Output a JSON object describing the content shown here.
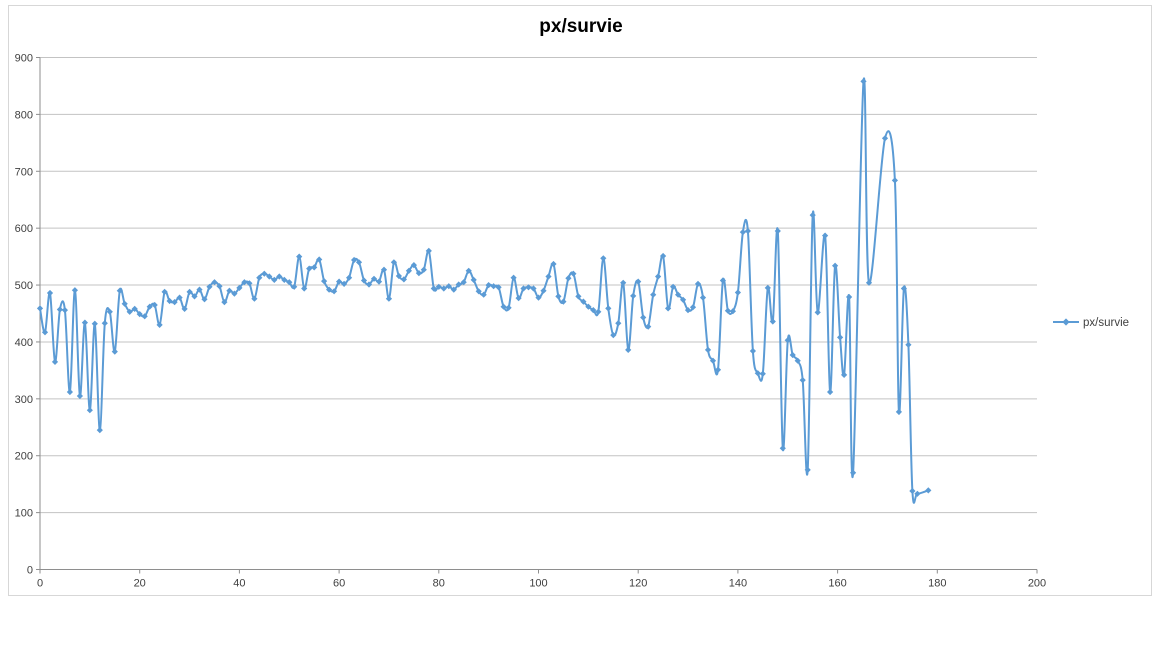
{
  "chart": {
    "title": "px/survie",
    "legend_label": "px/survie"
  },
  "style": {
    "series_color": "#5B9BD5",
    "gridline_color": "#C3C3C3",
    "axis_color": "#8E8E8E",
    "border_color": "#D7D7D7",
    "label_color": "#3F3F3F",
    "title_color": "#000000"
  },
  "chart_data": {
    "type": "line",
    "title": "px/survie",
    "legend": [
      "px/survie"
    ],
    "legend_position": "right",
    "xlabel": "",
    "ylabel": "",
    "xlim": [
      0,
      200
    ],
    "ylim": [
      0,
      900
    ],
    "x_ticks": [
      0,
      20,
      40,
      60,
      80,
      100,
      120,
      140,
      160,
      180,
      200
    ],
    "y_ticks": [
      0,
      100,
      200,
      300,
      400,
      500,
      600,
      700,
      800,
      900
    ],
    "grid": "horizontal",
    "smoothed_line": true,
    "marker": "diamond",
    "points": [
      [
        0,
        459
      ],
      [
        1,
        417
      ],
      [
        2,
        486
      ],
      [
        3,
        365
      ],
      [
        4,
        457
      ],
      [
        5,
        456
      ],
      [
        6,
        312
      ],
      [
        7,
        491
      ],
      [
        8,
        305
      ],
      [
        9,
        434
      ],
      [
        10,
        280
      ],
      [
        11,
        432
      ],
      [
        12,
        245
      ],
      [
        13,
        433
      ],
      [
        14,
        453
      ],
      [
        15,
        383
      ],
      [
        16,
        490
      ],
      [
        17,
        467
      ],
      [
        18,
        453
      ],
      [
        19,
        458
      ],
      [
        20,
        449
      ],
      [
        21,
        445
      ],
      [
        22,
        462
      ],
      [
        23,
        465
      ],
      [
        24,
        430
      ],
      [
        25,
        488
      ],
      [
        26,
        472
      ],
      [
        27,
        470
      ],
      [
        28,
        478
      ],
      [
        29,
        458
      ],
      [
        30,
        488
      ],
      [
        31,
        480
      ],
      [
        32,
        492
      ],
      [
        33,
        475
      ],
      [
        34,
        497
      ],
      [
        35,
        505
      ],
      [
        36,
        498
      ],
      [
        37,
        470
      ],
      [
        38,
        490
      ],
      [
        39,
        485
      ],
      [
        40,
        495
      ],
      [
        41,
        505
      ],
      [
        42,
        503
      ],
      [
        43,
        476
      ],
      [
        44,
        513
      ],
      [
        45,
        520
      ],
      [
        46,
        515
      ],
      [
        47,
        509
      ],
      [
        48,
        515
      ],
      [
        49,
        509
      ],
      [
        50,
        505
      ],
      [
        51,
        497
      ],
      [
        52,
        550
      ],
      [
        53,
        494
      ],
      [
        54,
        529
      ],
      [
        55,
        531
      ],
      [
        56,
        545
      ],
      [
        57,
        507
      ],
      [
        58,
        492
      ],
      [
        59,
        489
      ],
      [
        60,
        506
      ],
      [
        61,
        502
      ],
      [
        62,
        513
      ],
      [
        63,
        544
      ],
      [
        64,
        540
      ],
      [
        65,
        508
      ],
      [
        66,
        501
      ],
      [
        67,
        511
      ],
      [
        68,
        506
      ],
      [
        69,
        527
      ],
      [
        70,
        476
      ],
      [
        71,
        540
      ],
      [
        72,
        516
      ],
      [
        73,
        510
      ],
      [
        74,
        525
      ],
      [
        75,
        535
      ],
      [
        76,
        521
      ],
      [
        77,
        527
      ],
      [
        78,
        560
      ],
      [
        79,
        494
      ],
      [
        80,
        497
      ],
      [
        81,
        494
      ],
      [
        82,
        498
      ],
      [
        83,
        492
      ],
      [
        84,
        501
      ],
      [
        85,
        505
      ],
      [
        86,
        525
      ],
      [
        87,
        509
      ],
      [
        88,
        489
      ],
      [
        89,
        483
      ],
      [
        90,
        500
      ],
      [
        91,
        498
      ],
      [
        92,
        496
      ],
      [
        93,
        462
      ],
      [
        94,
        460
      ],
      [
        95,
        513
      ],
      [
        96,
        477
      ],
      [
        97,
        494
      ],
      [
        98,
        496
      ],
      [
        99,
        494
      ],
      [
        100,
        478
      ],
      [
        101,
        490
      ],
      [
        102,
        515
      ],
      [
        103,
        537
      ],
      [
        104,
        480
      ],
      [
        105,
        471
      ],
      [
        106,
        512
      ],
      [
        107,
        520
      ],
      [
        108,
        480
      ],
      [
        109,
        471
      ],
      [
        110,
        462
      ],
      [
        111,
        456
      ],
      [
        112,
        453
      ],
      [
        113,
        547
      ],
      [
        114,
        459
      ],
      [
        115,
        412
      ],
      [
        116,
        433
      ],
      [
        117,
        504
      ],
      [
        118,
        386
      ],
      [
        119,
        481
      ],
      [
        120,
        506
      ],
      [
        121,
        443
      ],
      [
        122,
        427
      ],
      [
        123,
        483
      ],
      [
        124,
        515
      ],
      [
        125,
        551
      ],
      [
        126,
        459
      ],
      [
        127,
        497
      ],
      [
        128,
        483
      ],
      [
        129,
        474
      ],
      [
        130,
        456
      ],
      [
        131,
        461
      ],
      [
        132,
        502
      ],
      [
        133,
        478
      ],
      [
        134,
        386
      ],
      [
        135,
        367
      ],
      [
        136,
        351
      ],
      [
        137,
        508
      ],
      [
        138,
        455
      ],
      [
        139,
        454
      ],
      [
        140,
        487
      ],
      [
        141,
        593
      ],
      [
        142,
        595
      ],
      [
        143,
        384
      ],
      [
        144,
        345
      ],
      [
        145,
        344
      ],
      [
        146,
        495
      ],
      [
        147,
        436
      ],
      [
        148,
        595
      ],
      [
        149,
        213
      ],
      [
        150,
        403
      ],
      [
        151,
        377
      ],
      [
        152,
        367
      ],
      [
        153,
        333
      ],
      [
        154,
        175
      ],
      [
        155,
        623
      ],
      [
        156,
        452
      ],
      [
        157.5,
        587
      ],
      [
        158.5,
        312
      ],
      [
        159.5,
        534
      ],
      [
        160.5,
        408
      ],
      [
        161.3,
        342
      ],
      [
        162.3,
        479
      ],
      [
        163.1,
        170
      ],
      [
        165.2,
        858
      ],
      [
        166.3,
        504
      ],
      [
        169.5,
        758
      ],
      [
        171.5,
        684
      ],
      [
        172.3,
        277
      ],
      [
        173.3,
        494
      ],
      [
        174.2,
        395
      ],
      [
        175,
        138
      ],
      [
        176,
        133
      ],
      [
        178.2,
        139
      ]
    ]
  }
}
